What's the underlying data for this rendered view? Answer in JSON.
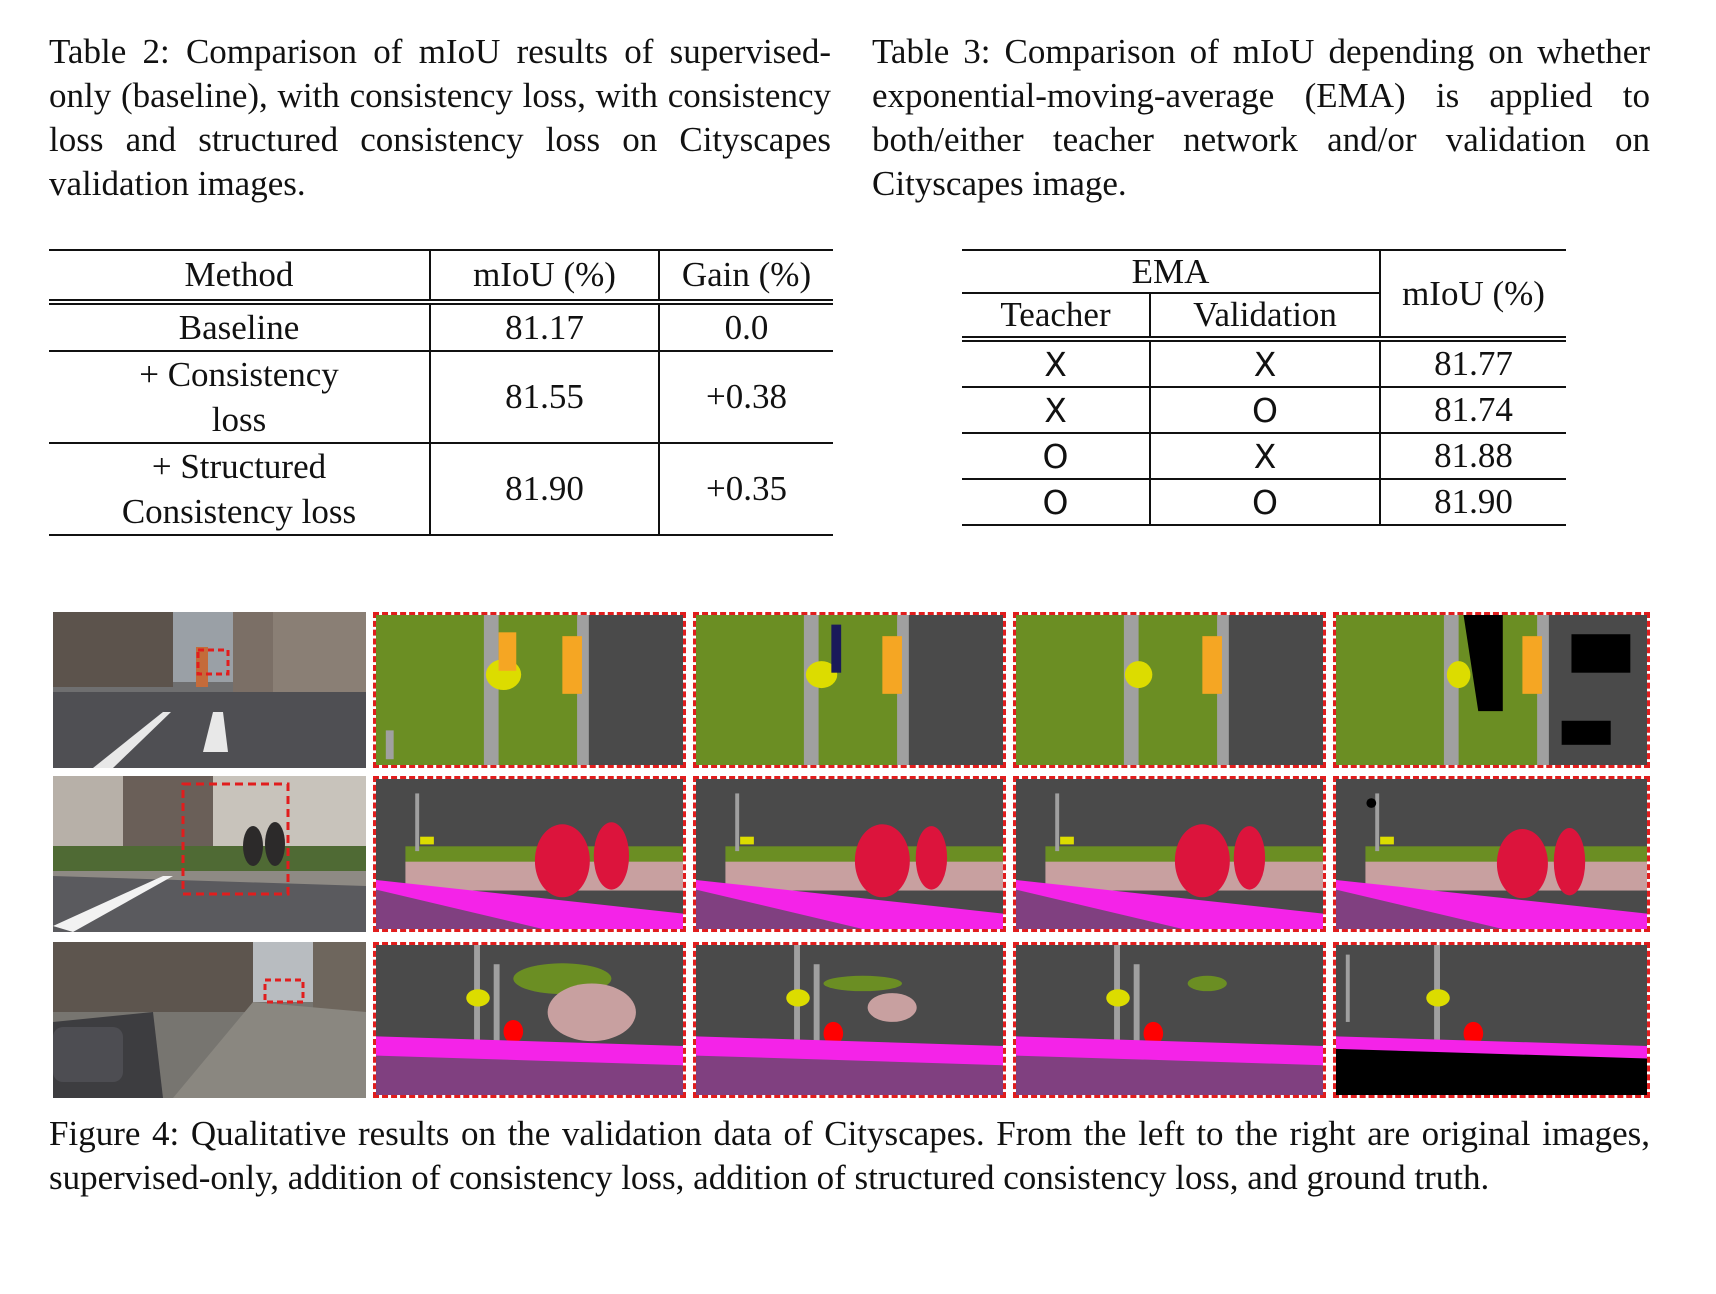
{
  "table2": {
    "caption": "Table 2: Comparison of mIoU results of supervised-only (baseline), with consistency loss, with consistency loss and structured consistency loss on Cityscapes validation images.",
    "headers": [
      "Method",
      "mIoU (%)",
      "Gain (%)"
    ],
    "rows": [
      {
        "method_line1": "Baseline",
        "method_line2": "",
        "miou": "81.17",
        "gain": "0.0"
      },
      {
        "method_line1": "+ Consistency",
        "method_line2": "loss",
        "miou": "81.55",
        "gain": "+0.38"
      },
      {
        "method_line1": "+ Structured",
        "method_line2": "Consistency loss",
        "miou": "81.90",
        "gain": "+0.35"
      }
    ]
  },
  "table3": {
    "caption": "Table 3: Comparison of mIoU depending on whether exponential-moving-average (EMA) is applied to both/either teacher network and/or validation on Cityscapes image.",
    "group_header": "EMA",
    "headers": [
      "Teacher",
      "Validation",
      "mIoU (%)"
    ],
    "rows": [
      {
        "teacher": "X",
        "validation": "X",
        "miou": "81.77"
      },
      {
        "teacher": "X",
        "validation": "O",
        "miou": "81.74"
      },
      {
        "teacher": "O",
        "validation": "X",
        "miou": "81.88"
      },
      {
        "teacher": "O",
        "validation": "O",
        "miou": "81.90"
      }
    ]
  },
  "figure4": {
    "caption": "Figure 4: Qualitative results on the validation data of Cityscapes. From the left to the right are original images, supervised-only, addition of consistency loss, addition of structured consistency loss, and ground truth.",
    "colors": {
      "highlight_box": "#e11d1d",
      "road": "#4a4a4a",
      "vegetation": "#6b8e23",
      "pole": "#a0a0a0",
      "traffic_light": "#f5a623",
      "traffic_sign": "#dcdc00",
      "person": "#dc143c",
      "sidewalk": "#f423e8",
      "road_purple": "#804080",
      "terrain": "#c8a0a0",
      "void": "#000000"
    }
  }
}
